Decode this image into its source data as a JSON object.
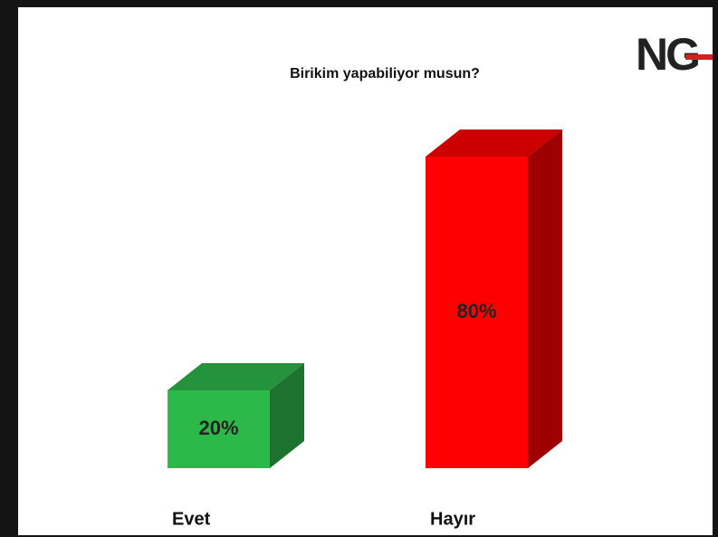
{
  "logo": "NG",
  "chart_data": {
    "type": "bar3d",
    "title": "Birikim yapabiliyor musun?",
    "categories": [
      "Evet",
      "Hayır"
    ],
    "values": [
      20,
      80
    ],
    "value_labels": [
      "20%",
      "80%"
    ],
    "colors": [
      "#2db84a",
      "#ff0000"
    ]
  }
}
